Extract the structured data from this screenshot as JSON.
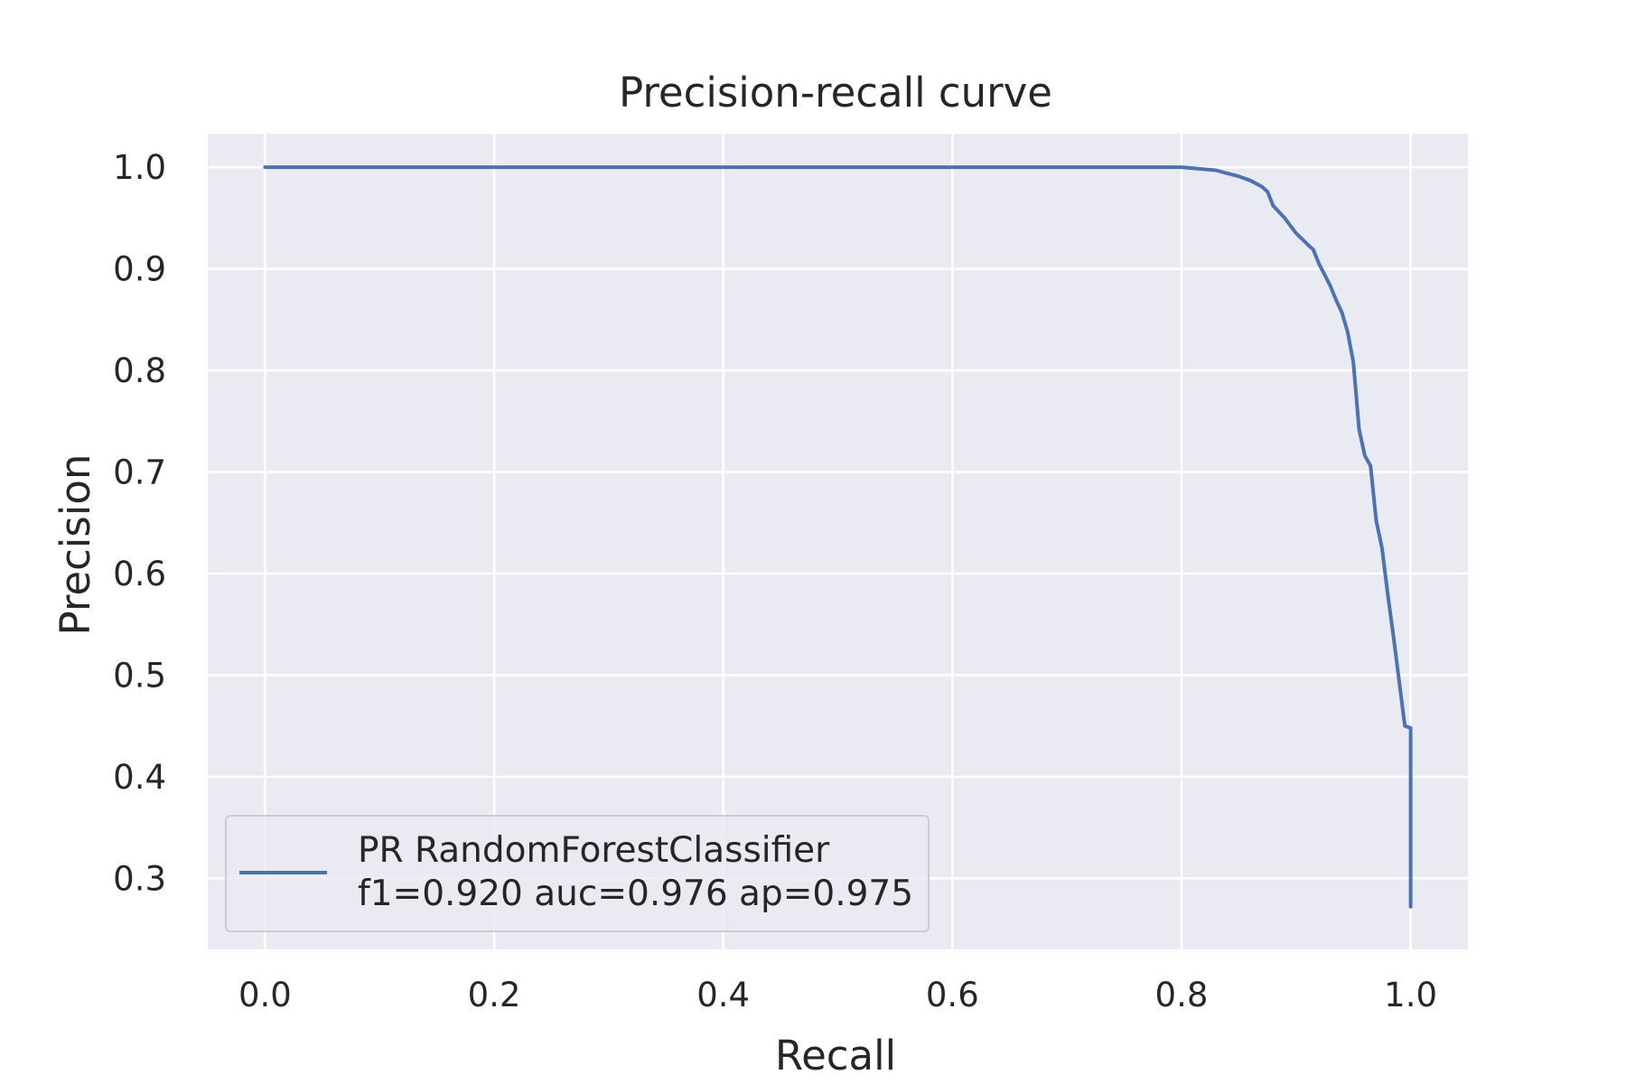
{
  "chart_data": {
    "type": "line",
    "title": "Precision-recall curve",
    "xlabel": "Recall",
    "ylabel": "Precision",
    "xlim": [
      -0.05,
      1.05
    ],
    "ylim": [
      0.23,
      1.033
    ],
    "xticks": [
      0.0,
      0.2,
      0.4,
      0.6,
      0.8,
      1.0
    ],
    "xtick_labels": [
      "0.0",
      "0.2",
      "0.4",
      "0.6",
      "0.8",
      "1.0"
    ],
    "yticks": [
      0.3,
      0.4,
      0.5,
      0.6,
      0.7,
      0.8,
      0.9,
      1.0
    ],
    "ytick_labels": [
      "0.3",
      "0.4",
      "0.5",
      "0.6",
      "0.7",
      "0.8",
      "0.9",
      "1.0"
    ],
    "grid": true,
    "legend_position": "lower-left",
    "colors": {
      "background": "#eaeaf2",
      "grid": "#ffffff",
      "line": "#4c72b0",
      "text": "#262626",
      "legend_border": "#cccccc"
    },
    "series": [
      {
        "name": "PR RandomForestClassifier",
        "legend_detail": "f1=0.920 auc=0.976 ap=0.975",
        "x": [
          0.0,
          0.1,
          0.2,
          0.3,
          0.4,
          0.5,
          0.6,
          0.7,
          0.8,
          0.81,
          0.82,
          0.83,
          0.84,
          0.85,
          0.86,
          0.87,
          0.875,
          0.88,
          0.89,
          0.9,
          0.91,
          0.915,
          0.92,
          0.925,
          0.93,
          0.935,
          0.94,
          0.945,
          0.95,
          0.955,
          0.96,
          0.965,
          0.97,
          0.975,
          0.98,
          0.985,
          0.99,
          0.995,
          1.0,
          1.0
        ],
        "y": [
          1.0,
          1.0,
          1.0,
          1.0,
          1.0,
          1.0,
          1.0,
          1.0,
          1.0,
          0.999,
          0.998,
          0.997,
          0.994,
          0.991,
          0.987,
          0.981,
          0.976,
          0.962,
          0.95,
          0.935,
          0.924,
          0.919,
          0.905,
          0.894,
          0.883,
          0.869,
          0.857,
          0.838,
          0.808,
          0.742,
          0.716,
          0.706,
          0.652,
          0.625,
          0.58,
          0.538,
          0.494,
          0.45,
          0.448,
          0.272
        ]
      }
    ]
  }
}
